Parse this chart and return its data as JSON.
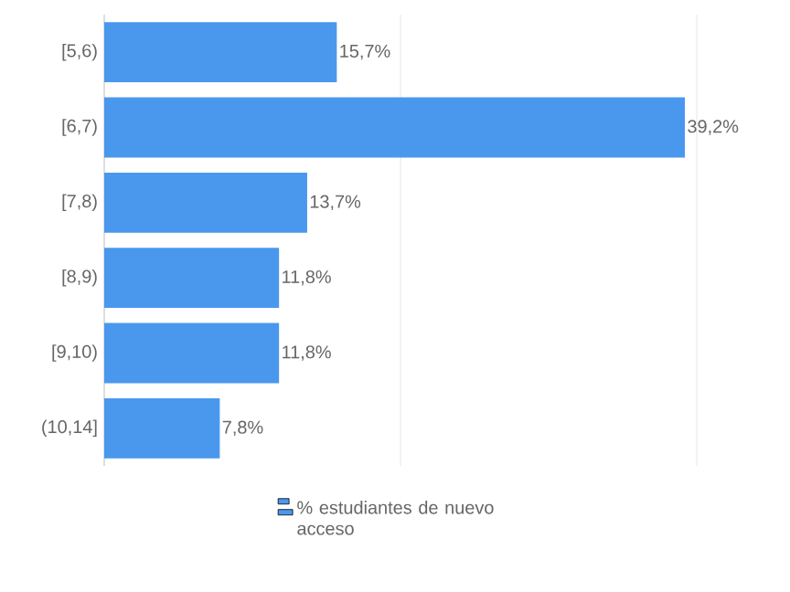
{
  "chart_data": {
    "type": "bar",
    "orientation": "horizontal",
    "categories": [
      "[5,6)",
      "[6,7)",
      "[7,8)",
      "[8,9)",
      "[9,10)",
      "(10,14]"
    ],
    "series": [
      {
        "name": "% estudiantes de nuevo acceso",
        "color": "#4a98ee",
        "values": [
          15.7,
          39.2,
          13.7,
          11.8,
          11.8,
          7.8
        ],
        "value_labels": [
          "15,7%",
          "39,2%",
          "13,7%",
          "11,8%",
          "11,8%",
          "7,8%"
        ]
      }
    ],
    "xlim": [
      0,
      40
    ],
    "xticks": [
      {
        "value": 0,
        "label": null
      },
      {
        "value": 20,
        "label": null
      },
      {
        "value": 40,
        "label": null
      }
    ],
    "tick_labels": "y",
    "grid": "x",
    "legend": "bottom"
  }
}
